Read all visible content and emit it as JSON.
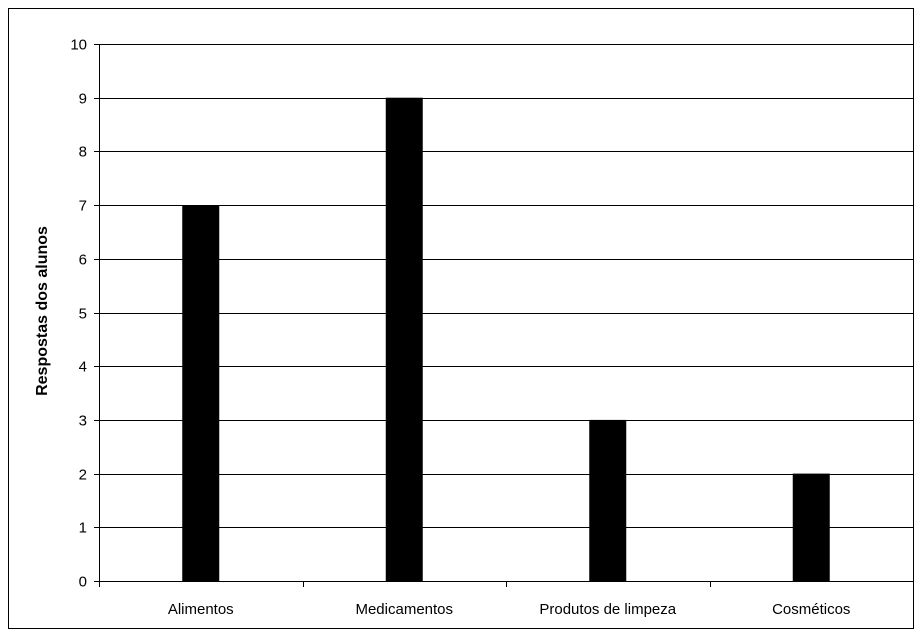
{
  "chart_data": {
    "type": "bar",
    "title": "",
    "xlabel": "",
    "ylabel": "Respostas dos alunos",
    "categories": [
      "Alimentos",
      "Medicamentos",
      "Produtos de limpeza",
      "Cosméticos"
    ],
    "values": [
      7,
      9,
      3,
      2
    ],
    "ylim": [
      0,
      10
    ],
    "yticks": [
      0,
      1,
      2,
      3,
      4,
      5,
      6,
      7,
      8,
      9,
      10
    ],
    "grid": true,
    "legend": "none",
    "colors": {
      "bar": "#000000",
      "grid": "#000000",
      "background": "#ffffff",
      "frame": "#000000"
    }
  }
}
